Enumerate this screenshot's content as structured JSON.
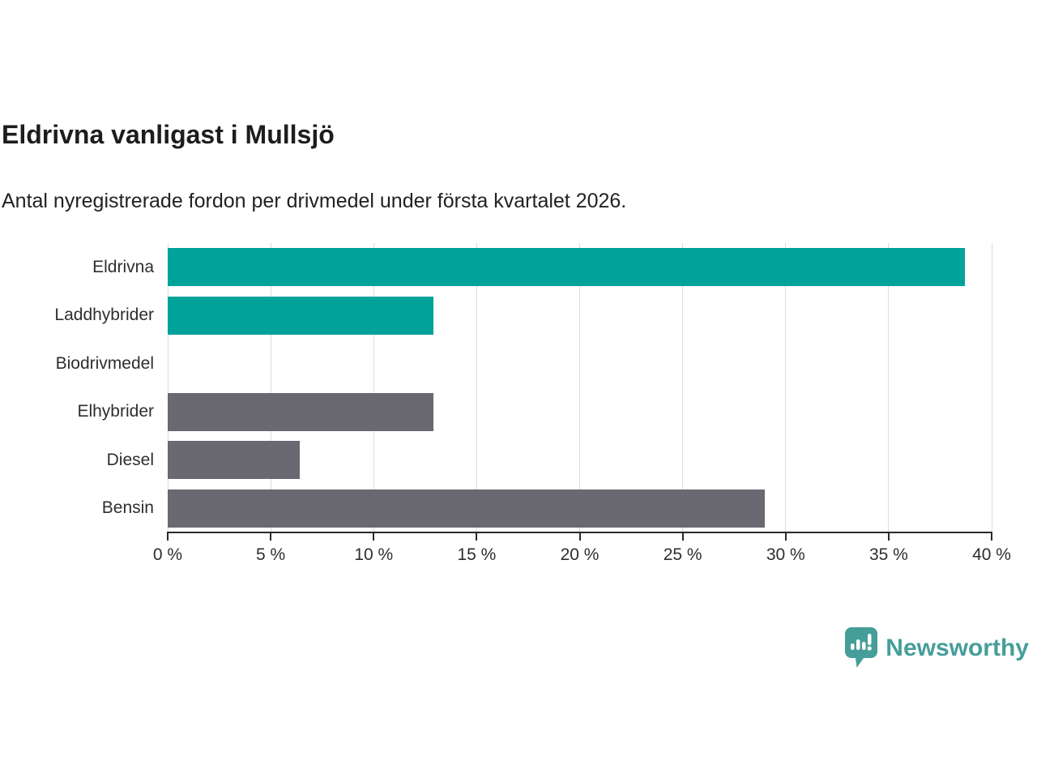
{
  "header": {
    "title": "Eldrivna vanligast i Mullsjö",
    "subtitle": "Antal nyregistrerade fordon per drivmedel under första kvartalet 2026."
  },
  "chart_data": {
    "type": "bar",
    "orientation": "horizontal",
    "title": "Eldrivna vanligast i Mullsjö",
    "subtitle": "Antal nyregistrerade fordon per drivmedel under första kvartalet 2026.",
    "categories": [
      "Eldrivna",
      "Laddhybrider",
      "Biodrivmedel",
      "Elhybrider",
      "Diesel",
      "Bensin"
    ],
    "values": [
      38.7,
      12.9,
      0,
      12.9,
      6.4,
      29.0
    ],
    "unit": "%",
    "xlabel": "",
    "ylabel": "",
    "xlim": [
      0,
      40
    ],
    "x_tick_values": [
      0,
      5,
      10,
      15,
      20,
      25,
      30,
      35,
      40
    ],
    "x_tick_labels": [
      "0 %",
      "5 %",
      "10 %",
      "15 %",
      "20 %",
      "25 %",
      "30 %",
      "35 %",
      "40 %"
    ],
    "grid": "vertical",
    "legend": "none",
    "bar_colors": [
      "#00a29a",
      "#00a29a",
      "#00a29a",
      "#6a6972",
      "#6a6972",
      "#6a6972"
    ],
    "highlight_color": "#00a29a",
    "default_color": "#6a6972",
    "gridline_color": "#dcdcdc",
    "axis_color": "#2b2b2b"
  },
  "footer": {
    "brand": "Newsworthy",
    "brand_color": "#459e99"
  }
}
